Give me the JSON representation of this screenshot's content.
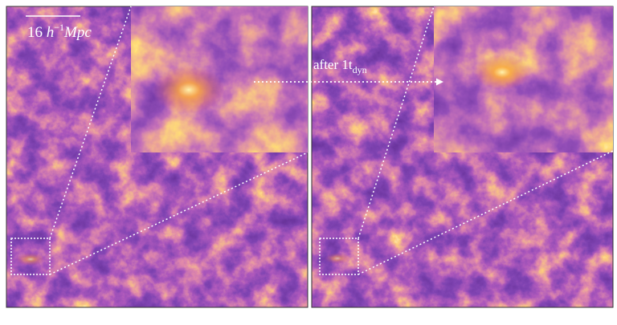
{
  "scale_bar": {
    "number": "16",
    "h": "h",
    "exponent": "−1",
    "unit": "Mpc"
  },
  "annotation": {
    "text": "after 1t",
    "subscript": "dyn"
  }
}
